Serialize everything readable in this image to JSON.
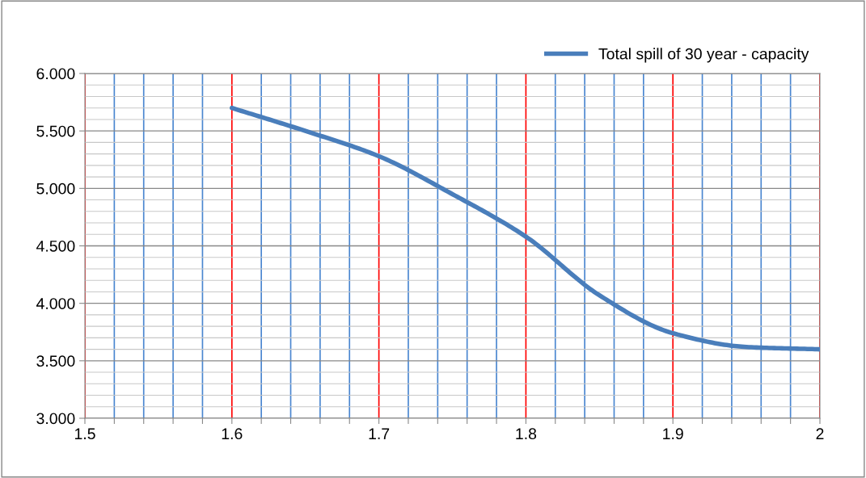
{
  "chart_data": {
    "type": "line",
    "x": [
      1.6,
      1.65,
      1.7,
      1.75,
      1.8,
      1.85,
      1.9,
      1.95,
      2.0
    ],
    "series": [
      {
        "name": "Total spill of 30 year - capacity",
        "color": "#4a7ebb",
        "values": [
          5.7,
          5.5,
          5.28,
          4.95,
          4.58,
          4.07,
          3.74,
          3.62,
          3.6
        ]
      }
    ],
    "xlim": [
      1.5,
      2.0
    ],
    "xticks": [
      1.5,
      {
        "value": 1.52,
        "label": null
      },
      {
        "value": 1.54,
        "label": null
      },
      {
        "value": 1.56,
        "label": null
      },
      {
        "value": 1.58,
        "label": null
      },
      1.6,
      {
        "value": 1.62,
        "label": null
      },
      {
        "value": 1.64,
        "label": null
      },
      {
        "value": 1.66,
        "label": null
      },
      {
        "value": 1.68,
        "label": null
      },
      1.7,
      {
        "value": 1.72,
        "label": null
      },
      {
        "value": 1.74,
        "label": null
      },
      {
        "value": 1.76,
        "label": null
      },
      {
        "value": 1.78,
        "label": null
      },
      1.8,
      {
        "value": 1.82,
        "label": null
      },
      {
        "value": 1.84,
        "label": null
      },
      {
        "value": 1.86,
        "label": null
      },
      {
        "value": 1.88,
        "label": null
      },
      1.9,
      {
        "value": 1.92,
        "label": null
      },
      {
        "value": 1.94,
        "label": null
      },
      {
        "value": 1.96,
        "label": null
      },
      {
        "value": 1.98,
        "label": null
      },
      2
    ],
    "ylim": [
      3.0,
      6.0
    ],
    "yticks": [
      {
        "value": 3.0,
        "label": "3.000"
      },
      {
        "value": 3.5,
        "label": "3.500"
      },
      {
        "value": 4.0,
        "label": "4.000"
      },
      {
        "value": 4.5,
        "label": "4.500"
      },
      {
        "value": 5.0,
        "label": "5.000"
      },
      {
        "value": 5.5,
        "label": "5.500"
      },
      {
        "value": 6.0,
        "label": "6.000"
      }
    ],
    "grid": true,
    "legend": "top right",
    "marker": "none",
    "line_style": "solid"
  }
}
